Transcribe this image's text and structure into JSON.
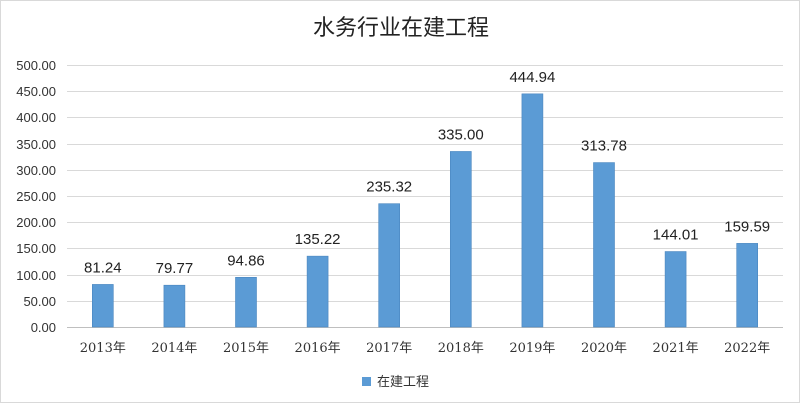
{
  "chart_data": {
    "type": "bar",
    "title": "水务行业在建工程",
    "xlabel": "",
    "ylabel": "",
    "categories": [
      "2013年",
      "2014年",
      "2015年",
      "2016年",
      "2017年",
      "2018年",
      "2019年",
      "2020年",
      "2021年",
      "2022年"
    ],
    "series": [
      {
        "name": "在建工程",
        "values": [
          81.24,
          79.77,
          94.86,
          135.22,
          235.32,
          335.0,
          444.94,
          313.78,
          144.01,
          159.59
        ],
        "color": "#5b9bd5"
      }
    ],
    "ylim": [
      0,
      500
    ],
    "ytick_step": 50,
    "ytick_labels": [
      "0.00",
      "50.00",
      "100.00",
      "150.00",
      "200.00",
      "250.00",
      "300.00",
      "350.00",
      "400.00",
      "450.00",
      "500.00"
    ],
    "data_labels": [
      "81.24",
      "79.77",
      "94.86",
      "135.22",
      "235.32",
      "335.00",
      "444.94",
      "313.78",
      "144.01",
      "159.59"
    ],
    "grid": true,
    "legend_position": "bottom"
  }
}
